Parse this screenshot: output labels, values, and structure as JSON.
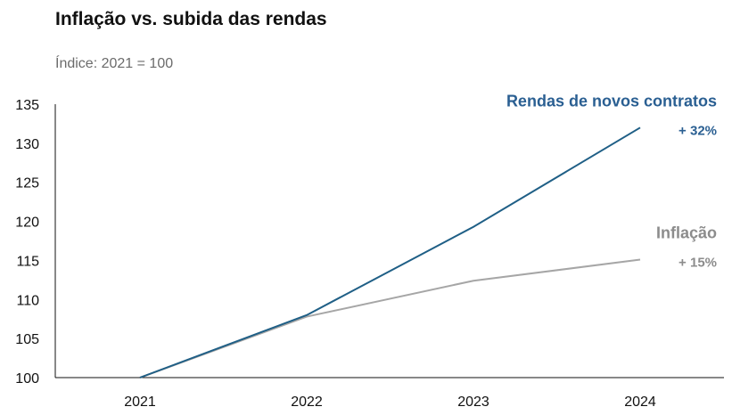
{
  "chart_data": {
    "type": "line",
    "title": "Inflação vs. subida das rendas",
    "subtitle": "Índice: 2021 = 100",
    "categories": [
      "2021",
      "2022",
      "2023",
      "2024"
    ],
    "ylim": [
      100,
      135
    ],
    "yticks": [
      100,
      105,
      110,
      115,
      120,
      125,
      130,
      135
    ],
    "grid": false,
    "legend": "direct-labels-right",
    "series": [
      {
        "name": "Rendas de novos contratos",
        "change_label": "+ 32%",
        "color": "#1f5f86",
        "label_color": "#2a5f92",
        "values": [
          100,
          108,
          119.3,
          132
        ]
      },
      {
        "name": "Inflação",
        "change_label": "+ 15%",
        "color": "#a6a6a6",
        "label_color": "#8c8c8c",
        "values": [
          100,
          107.8,
          112.4,
          115.1
        ]
      }
    ]
  }
}
